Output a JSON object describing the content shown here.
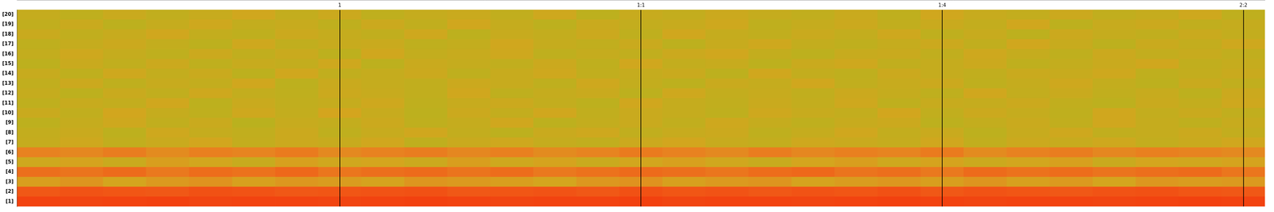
{
  "chart_data": {
    "type": "heatmap",
    "categories": [
      null,
      null,
      null,
      null,
      null,
      null,
      null,
      "1",
      null,
      null,
      null,
      null,
      null,
      null,
      "1:1",
      null,
      null,
      null,
      null,
      null,
      null,
      "1:4",
      null,
      null,
      null,
      null,
      null,
      null,
      "2:2"
    ],
    "rows": [
      "[1]",
      "[2]",
      "[3]",
      "[4]",
      "[5]",
      "[6]",
      "[7]",
      "[8]",
      "[9]",
      "[10]",
      "[11]",
      "[12]",
      "[13]",
      "[14]",
      "[15]",
      "[16]",
      "[17]",
      "[18]",
      "[19]",
      "[20]"
    ],
    "zlim": [
      0,
      100
    ],
    "grid": true,
    "cells": [
      [
        97,
        96,
        97,
        98,
        96,
        97,
        97,
        96,
        97,
        98,
        97,
        96,
        97,
        97,
        98,
        96,
        97,
        97,
        96,
        97,
        98,
        97,
        96,
        97,
        97,
        96,
        97,
        98,
        97
      ],
      [
        88,
        90,
        89,
        88,
        91,
        90,
        88,
        89,
        90,
        91,
        88,
        89,
        90,
        88,
        91,
        89,
        90,
        88,
        90,
        89,
        91,
        88,
        90,
        89,
        88,
        90,
        91,
        89,
        88
      ],
      [
        58,
        62,
        55,
        60,
        63,
        57,
        61,
        59,
        56,
        62,
        60,
        58,
        55,
        61,
        63,
        57,
        60,
        62,
        56,
        59,
        61,
        58,
        62,
        57,
        60,
        55,
        61,
        59,
        60
      ],
      [
        78,
        76,
        80,
        74,
        79,
        77,
        81,
        75,
        78,
        80,
        76,
        79,
        74,
        77,
        80,
        78,
        75,
        79,
        81,
        76,
        78,
        74,
        80,
        77,
        79,
        76,
        78,
        80,
        75
      ],
      [
        52,
        56,
        50,
        58,
        54,
        49,
        57,
        53,
        55,
        51,
        58,
        52,
        56,
        50,
        54,
        57,
        53,
        49,
        55,
        58,
        52,
        56,
        51,
        54,
        57,
        50,
        55,
        53,
        56
      ],
      [
        70,
        68,
        72,
        66,
        71,
        69,
        73,
        67,
        70,
        72,
        68,
        71,
        66,
        69,
        73,
        70,
        67,
        72,
        68,
        71,
        69,
        73,
        66,
        70,
        72,
        68,
        71,
        69,
        67
      ],
      [
        48,
        52,
        46,
        50,
        54,
        47,
        51,
        49,
        53,
        45,
        50,
        52,
        48,
        46,
        51,
        54,
        49,
        47,
        52,
        50,
        48,
        53,
        46,
        51,
        49,
        52,
        47,
        50,
        53
      ],
      [
        47,
        50,
        44,
        52,
        48,
        46,
        51,
        45,
        49,
        53,
        47,
        44,
        50,
        52,
        46,
        49,
        51,
        45,
        48,
        53,
        47,
        50,
        44,
        49,
        52,
        46,
        48,
        51,
        47
      ],
      [
        44,
        48,
        52,
        46,
        50,
        43,
        49,
        47,
        51,
        45,
        48,
        53,
        44,
        47,
        50,
        46,
        52,
        48,
        45,
        49,
        51,
        44,
        47,
        50,
        46,
        53,
        48,
        45,
        49
      ],
      [
        50,
        46,
        54,
        48,
        45,
        52,
        47,
        55,
        49,
        44,
        51,
        47,
        53,
        46,
        50,
        48,
        45,
        52,
        49,
        47,
        54,
        46,
        51,
        48,
        45,
        53,
        47,
        50,
        46
      ],
      [
        45,
        49,
        47,
        53,
        44,
        50,
        46,
        48,
        52,
        45,
        49,
        51,
        47,
        44,
        53,
        48,
        46,
        50,
        47,
        52,
        45,
        49,
        48,
        51,
        46,
        44,
        50,
        47,
        52
      ],
      [
        48,
        44,
        50,
        46,
        52,
        47,
        45,
        51,
        49,
        46,
        53,
        45,
        48,
        50,
        44,
        52,
        47,
        49,
        46,
        51,
        48,
        45,
        53,
        47,
        50,
        46,
        49,
        44,
        51
      ],
      [
        46,
        51,
        45,
        49,
        47,
        53,
        44,
        50,
        48,
        46,
        51,
        49,
        45,
        52,
        47,
        44,
        50,
        48,
        53,
        46,
        49,
        51,
        45,
        48,
        52,
        47,
        44,
        50,
        46
      ],
      [
        49,
        45,
        52,
        47,
        50,
        44,
        53,
        46,
        48,
        51,
        45,
        49,
        52,
        46,
        48,
        50,
        44,
        53,
        47,
        45,
        51,
        48,
        46,
        50,
        49,
        52,
        45,
        47,
        50
      ],
      [
        44,
        50,
        46,
        51,
        45,
        49,
        47,
        52,
        44,
        50,
        48,
        46,
        51,
        45,
        53,
        47,
        49,
        44,
        50,
        52,
        46,
        48,
        51,
        45,
        47,
        50,
        53,
        46,
        48
      ],
      [
        47,
        52,
        48,
        45,
        51,
        46,
        50,
        44,
        53,
        47,
        49,
        52,
        45,
        48,
        46,
        51,
        53,
        47,
        44,
        49,
        50,
        46,
        52,
        48,
        45,
        51,
        47,
        49,
        46
      ],
      [
        45,
        48,
        51,
        47,
        44,
        52,
        46,
        49,
        50,
        45,
        47,
        53,
        48,
        46,
        50,
        44,
        49,
        52,
        47,
        45,
        48,
        51,
        46,
        53,
        49,
        44,
        50,
        47,
        52
      ],
      [
        50,
        46,
        49,
        53,
        47,
        45,
        51,
        48,
        46,
        52,
        44,
        49,
        47,
        51,
        45,
        53,
        48,
        46,
        50,
        47,
        52,
        45,
        49,
        44,
        51,
        48,
        46,
        50,
        47
      ],
      [
        46,
        50,
        44,
        48,
        52,
        47,
        49,
        45,
        51,
        46,
        53,
        48,
        44,
        50,
        47,
        49,
        52,
        45,
        48,
        51,
        46,
        50,
        47,
        53,
        44,
        49,
        51,
        46,
        48
      ],
      [
        48,
        45,
        50,
        46,
        49,
        53,
        47,
        51,
        45,
        48,
        50,
        46,
        52,
        44,
        49,
        47,
        51,
        48,
        46,
        50,
        45,
        53,
        49,
        47,
        51,
        46,
        48,
        52,
        45
      ]
    ]
  }
}
